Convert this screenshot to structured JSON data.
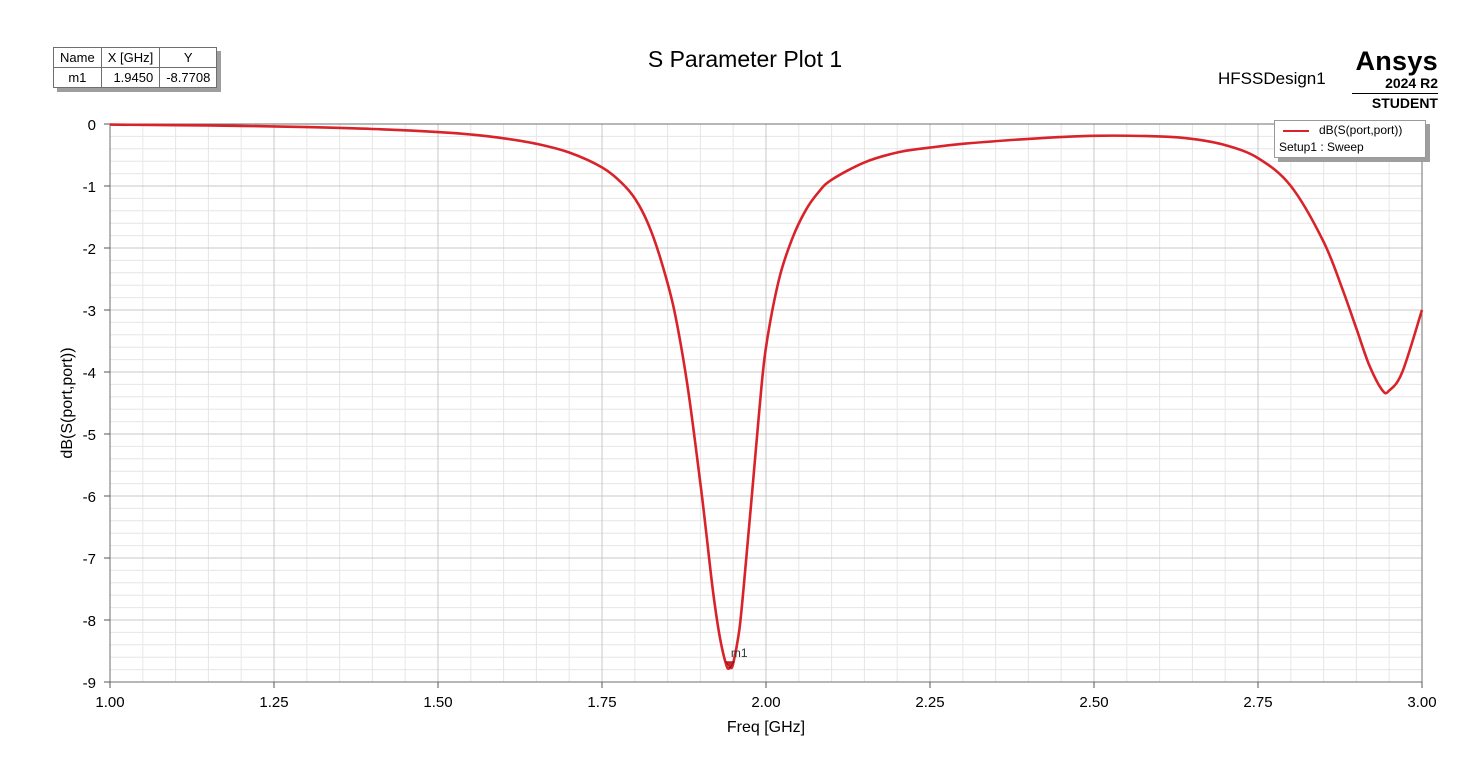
{
  "title": "S Parameter Plot 1",
  "design_name": "HFSSDesign1",
  "brand": {
    "name": "Ansys",
    "version": "2024 R2",
    "edition": "STUDENT"
  },
  "marker_table": {
    "headers": [
      "Name",
      "X [GHz]",
      "Y"
    ],
    "rows": [
      {
        "name": "m1",
        "x": "1.9450",
        "y": "-8.7708"
      }
    ]
  },
  "legend": {
    "trace": "dB(S(port,port))",
    "setup": "Setup1 : Sweep"
  },
  "colors": {
    "trace": "#d9232a",
    "grid_major": "#c8c8c8",
    "grid_minor": "#e6e6e6"
  },
  "chart_data": {
    "type": "line",
    "title": "S Parameter Plot 1",
    "xlabel": "Freq [GHz]",
    "ylabel": "dB(S(port,port))",
    "xlim": [
      1.0,
      3.0
    ],
    "ylim": [
      -9,
      0
    ],
    "x_ticks": [
      1.0,
      1.25,
      1.5,
      1.75,
      2.0,
      2.25,
      2.5,
      2.75,
      3.0
    ],
    "x_tick_labels": [
      "1.00",
      "1.25",
      "1.50",
      "1.75",
      "2.00",
      "2.25",
      "2.50",
      "2.75",
      "3.00"
    ],
    "y_ticks": [
      0,
      -1,
      -2,
      -3,
      -4,
      -5,
      -6,
      -7,
      -8,
      -9
    ],
    "y_tick_labels": [
      "0",
      "-1",
      "-2",
      "-3",
      "-4",
      "-5",
      "-6",
      "-7",
      "-8",
      "-9"
    ],
    "grid": true,
    "legend_position": "top-right",
    "series": [
      {
        "name": "dB(S(port,port))",
        "x": [
          1.0,
          1.1,
          1.2,
          1.3,
          1.4,
          1.5,
          1.55,
          1.6,
          1.65,
          1.7,
          1.75,
          1.78,
          1.8,
          1.82,
          1.84,
          1.86,
          1.88,
          1.9,
          1.91,
          1.92,
          1.93,
          1.94,
          1.945,
          1.95,
          1.96,
          1.97,
          1.98,
          1.99,
          2.0,
          2.02,
          2.04,
          2.06,
          2.08,
          2.1,
          2.15,
          2.2,
          2.25,
          2.3,
          2.4,
          2.5,
          2.6,
          2.65,
          2.7,
          2.75,
          2.8,
          2.85,
          2.88,
          2.9,
          2.92,
          2.94,
          2.95,
          2.97,
          3.0
        ],
        "y": [
          -0.01,
          -0.02,
          -0.03,
          -0.05,
          -0.08,
          -0.13,
          -0.17,
          -0.23,
          -0.32,
          -0.46,
          -0.7,
          -0.95,
          -1.2,
          -1.6,
          -2.2,
          -3.0,
          -4.2,
          -5.8,
          -6.7,
          -7.6,
          -8.3,
          -8.74,
          -8.77,
          -8.7,
          -8.1,
          -7.0,
          -5.8,
          -4.6,
          -3.6,
          -2.5,
          -1.85,
          -1.4,
          -1.1,
          -0.9,
          -0.62,
          -0.46,
          -0.38,
          -0.32,
          -0.24,
          -0.19,
          -0.2,
          -0.24,
          -0.34,
          -0.55,
          -1.0,
          -1.9,
          -2.7,
          -3.3,
          -3.9,
          -4.3,
          -4.3,
          -4.0,
          -3.0
        ]
      }
    ],
    "markers": [
      {
        "name": "m1",
        "x": 1.945,
        "y": -8.7708
      }
    ]
  }
}
